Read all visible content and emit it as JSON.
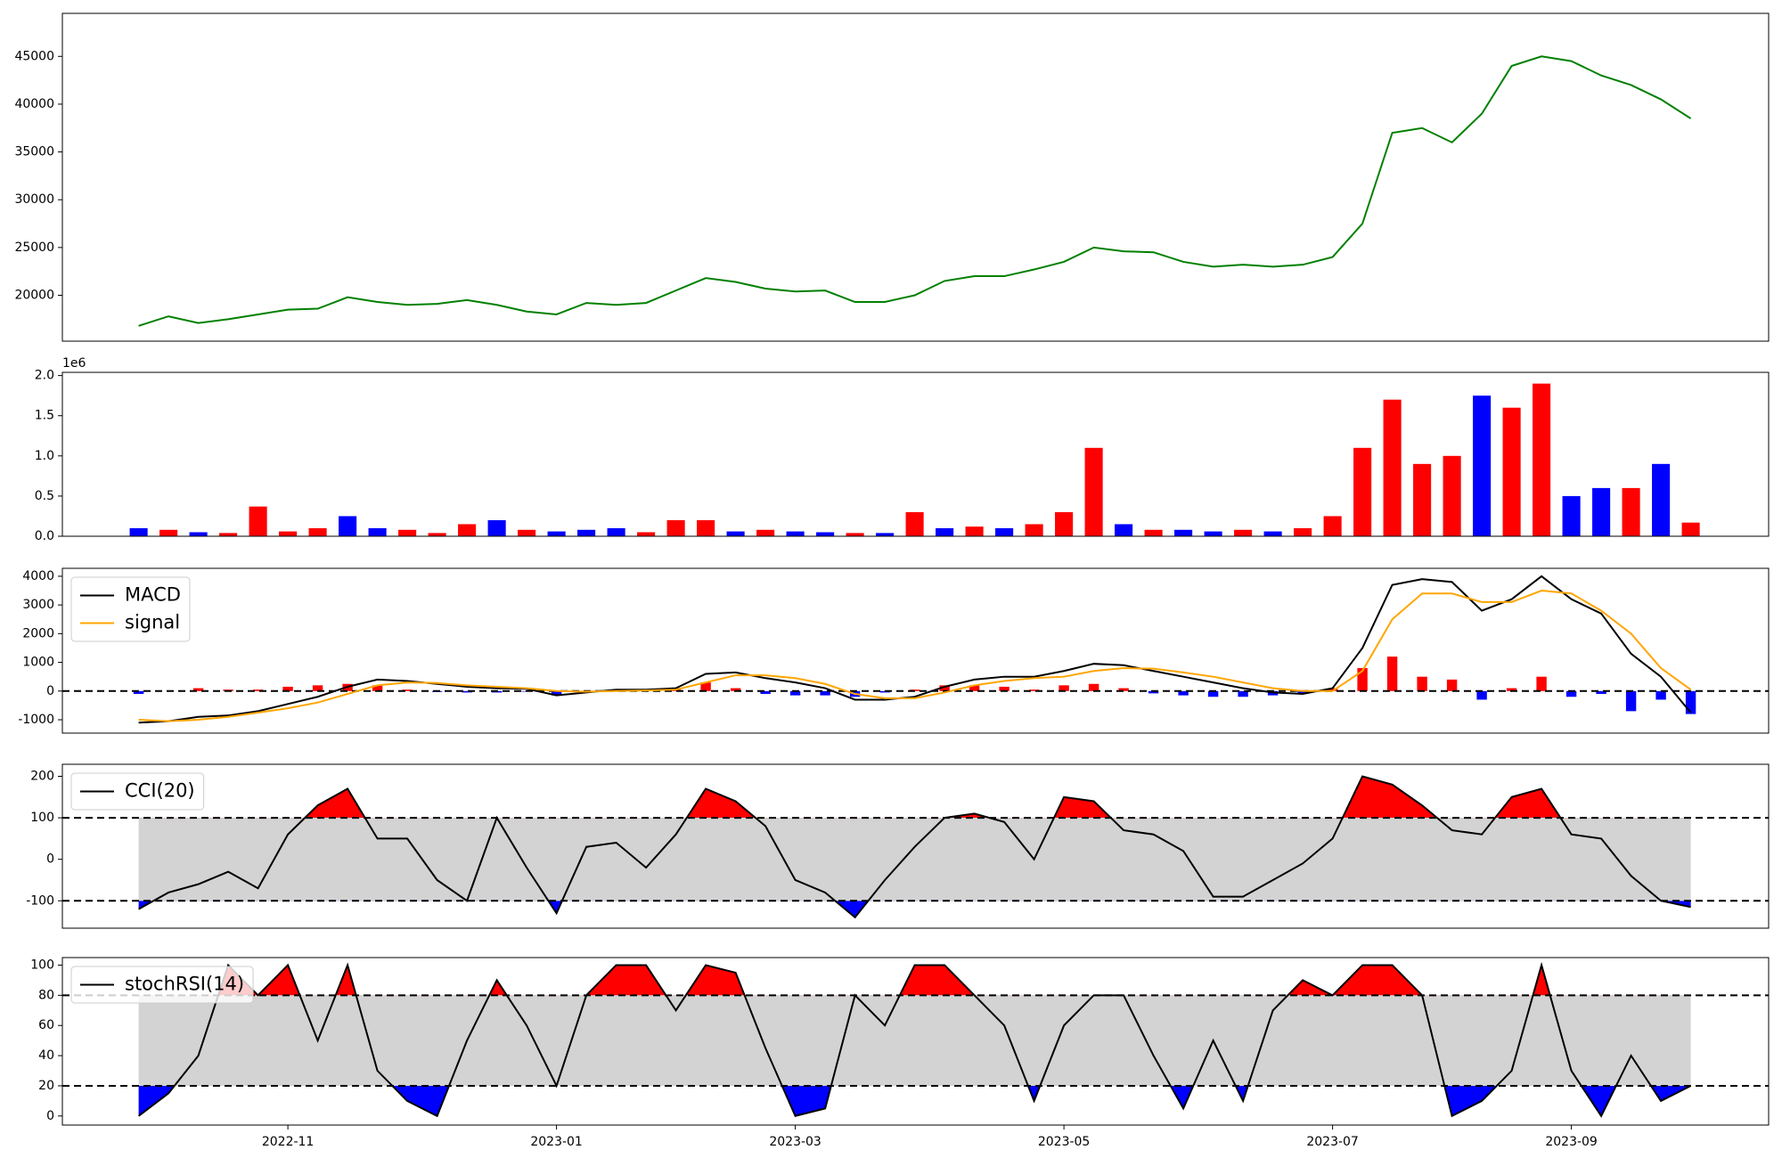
{
  "chart_data": [
    {
      "type": "line",
      "color": "#008000",
      "values": [
        16800,
        17800,
        17100,
        17500,
        18000,
        18500,
        18600,
        19800,
        19300,
        19000,
        19100,
        19500,
        19000,
        18300,
        18000,
        19200,
        19000,
        19200,
        20500,
        21800,
        21400,
        20700,
        20400,
        20500,
        19300,
        19300,
        20000,
        21500,
        22000,
        22000,
        22700,
        23500,
        25000,
        24600,
        24500,
        23500,
        23000,
        23200,
        23000,
        23200,
        24000,
        27500,
        37000,
        37500,
        36000,
        39000,
        44000,
        45000,
        44500,
        43000,
        42000,
        40500,
        38500
      ],
      "ylim": [
        15200,
        49500
      ],
      "yticks": [
        20000,
        25000,
        30000,
        35000,
        40000,
        45000
      ]
    },
    {
      "type": "bar",
      "values": [
        100000,
        80000,
        50000,
        40000,
        370000,
        60000,
        100000,
        250000,
        100000,
        80000,
        40000,
        150000,
        200000,
        80000,
        60000,
        80000,
        100000,
        50000,
        200000,
        200000,
        60000,
        80000,
        60000,
        50000,
        40000,
        40000,
        300000,
        100000,
        120000,
        100000,
        150000,
        300000,
        1100000,
        150000,
        80000,
        80000,
        60000,
        80000,
        60000,
        100000,
        250000,
        1100000,
        1700000,
        900000,
        1000000,
        1750000,
        1600000,
        1900000,
        500000,
        600000,
        600000,
        900000,
        170000
      ],
      "colors": [
        "blue",
        "red",
        "blue",
        "red",
        "red",
        "red",
        "red",
        "blue",
        "blue",
        "red",
        "red",
        "red",
        "blue",
        "red",
        "blue",
        "blue",
        "blue",
        "red",
        "red",
        "red",
        "blue",
        "red",
        "blue",
        "blue",
        "red",
        "blue",
        "red",
        "blue",
        "red",
        "blue",
        "red",
        "red",
        "red",
        "blue",
        "red",
        "blue",
        "blue",
        "red",
        "blue",
        "red",
        "red",
        "red",
        "red",
        "red",
        "red",
        "blue",
        "red",
        "red",
        "blue",
        "blue",
        "red",
        "blue",
        "red"
      ],
      "ylim": [
        0,
        2040000
      ],
      "offset_label": "1e6",
      "yticks": [
        {
          "value": 0,
          "label": "0.0"
        },
        {
          "value": 500000,
          "label": "0.5"
        },
        {
          "value": 1000000,
          "label": "1.0"
        },
        {
          "value": 1500000,
          "label": "1.5"
        },
        {
          "value": 2000000,
          "label": "2.0"
        }
      ]
    },
    {
      "type": "line",
      "legend": "upper left",
      "hline": 0,
      "series": [
        {
          "name": "MACD",
          "color": "black",
          "values": [
            -1100,
            -1050,
            -900,
            -850,
            -700,
            -450,
            -200,
            150,
            400,
            350,
            250,
            150,
            100,
            80,
            -150,
            -50,
            50,
            50,
            100,
            600,
            650,
            450,
            300,
            100,
            -300,
            -300,
            -200,
            150,
            400,
            500,
            500,
            700,
            950,
            900,
            700,
            500,
            300,
            100,
            -50,
            -100,
            100,
            1500,
            3700,
            3900,
            3800,
            2800,
            3200,
            4000,
            3200,
            2700,
            1300,
            500,
            -750
          ]
        },
        {
          "name": "signal",
          "color": "orange",
          "values": [
            -1000,
            -1050,
            -1000,
            -900,
            -750,
            -600,
            -400,
            -100,
            200,
            300,
            280,
            200,
            150,
            100,
            0,
            -20,
            0,
            20,
            50,
            300,
            550,
            550,
            450,
            250,
            -100,
            -250,
            -250,
            -50,
            200,
            350,
            450,
            500,
            700,
            800,
            780,
            650,
            500,
            300,
            100,
            0,
            0,
            700,
            2500,
            3400,
            3400,
            3100,
            3100,
            3500,
            3400,
            2800,
            2000,
            800,
            50
          ]
        }
      ],
      "histogram": {
        "pos_color": "red",
        "neg_color": "blue",
        "values": [
          -100,
          0,
          100,
          50,
          50,
          150,
          200,
          250,
          200,
          50,
          -30,
          -50,
          -50,
          -20,
          -150,
          -30,
          50,
          30,
          50,
          300,
          100,
          -100,
          -150,
          -150,
          -200,
          -50,
          50,
          200,
          200,
          150,
          50,
          200,
          250,
          100,
          -80,
          -150,
          -200,
          -200,
          -150,
          -100,
          100,
          800,
          1200,
          500,
          400,
          -300,
          100,
          500,
          -200,
          -100,
          -700,
          -300,
          -800
        ]
      },
      "ylim": [
        -1465,
        4277
      ],
      "yticks": [
        -1000,
        0,
        1000,
        2000,
        3000,
        4000
      ]
    },
    {
      "type": "line",
      "legend": "upper left",
      "thresholds": [
        100,
        -100
      ],
      "fill_colors": {
        "band": "lightgray",
        "above": "red",
        "below": "blue"
      },
      "series": [
        {
          "name": "CCI(20)",
          "color": "black",
          "values": [
            -120,
            -80,
            -60,
            -30,
            -70,
            60,
            130,
            170,
            50,
            50,
            -50,
            -100,
            100,
            -20,
            -130,
            30,
            40,
            -20,
            60,
            170,
            140,
            80,
            -50,
            -80,
            -140,
            -50,
            30,
            100,
            110,
            90,
            0,
            150,
            140,
            70,
            60,
            20,
            -90,
            -90,
            -50,
            -10,
            50,
            200,
            180,
            130,
            70,
            60,
            150,
            170,
            60,
            50,
            -40,
            -100,
            -115
          ]
        }
      ],
      "ylim": [
        -166,
        229
      ],
      "yticks": [
        -100,
        0,
        100,
        200
      ]
    },
    {
      "type": "line",
      "legend": "upper left",
      "thresholds": [
        80,
        20
      ],
      "fill_colors": {
        "band": "lightgray",
        "above": "red",
        "below": "blue"
      },
      "series": [
        {
          "name": "stochRSI(14)",
          "color": "black",
          "values": [
            0,
            15,
            40,
            100,
            80,
            100,
            50,
            100,
            30,
            10,
            0,
            50,
            90,
            60,
            20,
            80,
            100,
            100,
            70,
            100,
            95,
            45,
            0,
            5,
            80,
            60,
            100,
            100,
            80,
            60,
            10,
            60,
            80,
            80,
            40,
            5,
            50,
            10,
            70,
            90,
            80,
            100,
            100,
            80,
            0,
            10,
            30,
            100,
            30,
            0,
            40,
            10,
            20
          ]
        }
      ],
      "ylim": [
        -6,
        105
      ],
      "yticks": [
        0,
        20,
        40,
        60,
        80,
        100
      ],
      "categories": [
        null,
        null,
        null,
        null,
        null,
        "2022-11",
        null,
        null,
        null,
        null,
        null,
        null,
        null,
        null,
        "2023-01",
        null,
        null,
        null,
        null,
        null,
        null,
        null,
        "2023-03",
        null,
        null,
        null,
        null,
        null,
        null,
        null,
        null,
        "2023-05",
        null,
        null,
        null,
        null,
        null,
        null,
        null,
        null,
        "2023-07",
        null,
        null,
        null,
        null,
        null,
        null,
        null,
        "2023-09",
        null,
        null,
        null,
        null
      ]
    }
  ]
}
